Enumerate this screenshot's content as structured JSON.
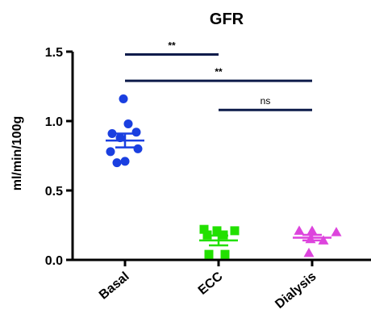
{
  "chart_data": {
    "type": "scatter",
    "title": "GFR",
    "ylabel": "ml/min/100g",
    "xlabel": "",
    "ylim": [
      0,
      1.5
    ],
    "yticks": [
      {
        "value": 0.0,
        "label": "0.0"
      },
      {
        "value": 0.5,
        "label": "0.5"
      },
      {
        "value": 1.0,
        "label": "1.0"
      },
      {
        "value": 1.5,
        "label": "1.5"
      }
    ],
    "categories": [
      "Basal",
      "ECC",
      "Dialysis"
    ],
    "groups": [
      {
        "category": "Basal",
        "marker": "circle",
        "color": "#1a3fe0",
        "points": [
          1.16,
          0.98,
          0.92,
          0.91,
          0.88,
          0.8,
          0.78,
          0.71,
          0.7
        ],
        "mean": 0.86,
        "sem": 0.05
      },
      {
        "category": "ECC",
        "marker": "square",
        "color": "#22e000",
        "points": [
          0.22,
          0.21,
          0.21,
          0.18,
          0.18,
          0.04,
          0.04
        ],
        "mean": 0.14,
        "sem": 0.035
      },
      {
        "category": "Dialysis",
        "marker": "triangle",
        "color": "#dd44dd",
        "points": [
          0.21,
          0.21,
          0.2,
          0.15,
          0.14,
          0.05
        ],
        "mean": 0.16,
        "sem": 0.02
      }
    ],
    "comparisons": [
      {
        "from": "Basal",
        "to": "ECC",
        "y": 1.48,
        "label": "**"
      },
      {
        "from": "Basal",
        "to": "Dialysis",
        "y": 1.29,
        "label": "**"
      },
      {
        "from": "ECC",
        "to": "Dialysis",
        "y": 1.08,
        "label": "ns"
      }
    ],
    "bar_color": "#0d1b4a"
  }
}
